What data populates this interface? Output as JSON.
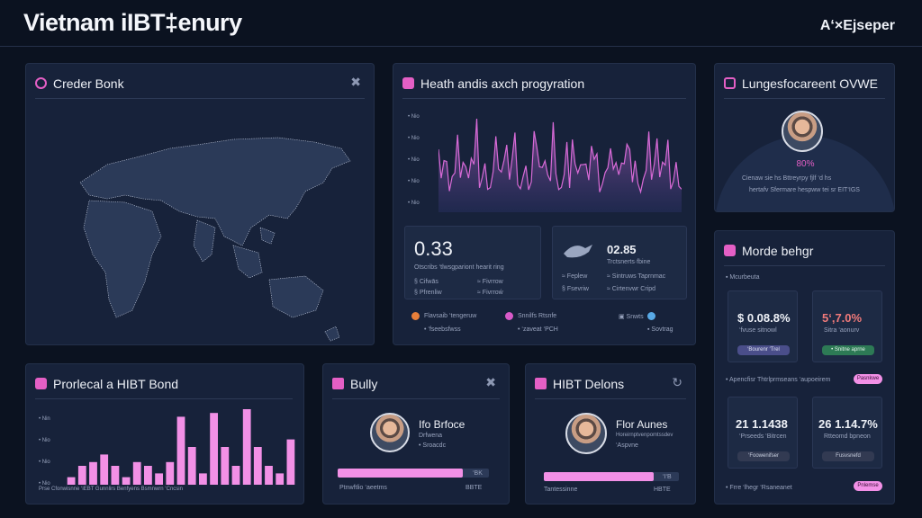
{
  "header": {
    "title": "Vietnam iIBT‡enury",
    "brand": "A‘×Ejseper"
  },
  "order_book": {
    "title": "Creder Bonk"
  },
  "health": {
    "title": "Heath andis axch progyration",
    "axis_labels": [
      "• Nio",
      "• Nio",
      "• Nio",
      "• Nio",
      "• Nio"
    ],
    "card1": {
      "value": "0.33",
      "caption": "Otscribs ‘tlwsgpariont hearit ring",
      "rows": [
        "§ Cifwās",
        "≈ Fivrrow",
        "§ Pfrenliw",
        "≈ Fivrroẃ"
      ]
    },
    "card2": {
      "value": "02.85",
      "caption": "Trctsnerts·fbine",
      "rows": [
        "≈ Feplew",
        "≈ Sintruws Taprnmac",
        "§ Fsevriw",
        "≈ Cirtenvwr Cripd"
      ]
    },
    "legend": [
      {
        "label": "Flavsaib ‘tengeruw",
        "sub": "• ‘fseebsfwss",
        "color": "#e77f3a"
      },
      {
        "label": "Snnilfs Rtsnfe",
        "sub": "• ‘zaveat ‘PCH",
        "color": "#d85ac8"
      },
      {
        "label": "▣ Snwts",
        "sub": "▪ Sovtrag",
        "color": "#58a9e6"
      }
    ]
  },
  "lunges": {
    "title": "Lungesfocareent OVWE",
    "percent": "80%",
    "line1": "Cienaw sie hs Bttreyrpy fjlf ‘d hs",
    "line2": "hertafv Sfermare hespww tei sr EIT‘IGS"
  },
  "monde": {
    "title": "Morde behgr",
    "label_top": "▪ Mcurbeuta",
    "card_a": {
      "value": "$ 0.08.8%",
      "sub": "‘fvuse sitnowl",
      "button": "‘Bourenr ‘Trel"
    },
    "card_b": {
      "value": "5‘,7.0%",
      "sub": "Sitra ‘aonurv",
      "button": "• Snitne aprne"
    },
    "row_label": "• Apencfisr Thtrlprmseans ‘aupoeirem",
    "row_pill": "Pasnkwe",
    "card_c": {
      "value": "21 1.1438",
      "sub": "‘Prseeds ‘Bitrcen",
      "button": "‘Foowenifser"
    },
    "card_d": {
      "value": "26 1.14.7%",
      "sub": "Rtteomd bpneon",
      "button": "Fusvsnefd"
    },
    "footer_label": "• Frre ‘lhegr ‘Rsaneanet",
    "footer_pill": "Pnlemse"
  },
  "provincial": {
    "title": "Prorlecal a HIBT Bond",
    "axis_labels": [
      "• Nin",
      "• Nio",
      "• Nio",
      "• Nio"
    ],
    "footer": "Prse Cfonwisnne ‘iEBT Gunnlirs Benfyens Bsmnwrn ‘Cncsin",
    "chart_data": {
      "type": "bar",
      "values": [
        2,
        5,
        6,
        8,
        5,
        2,
        6,
        5,
        3,
        6,
        18,
        10,
        3,
        19,
        10,
        5,
        20,
        10,
        5,
        3,
        12
      ]
    }
  },
  "bully": {
    "title": "Bully",
    "name": "Ifo Brfoce",
    "role": "Drfwena",
    "tag": "• Sroacdc",
    "progress_value": "‘BK",
    "progress": 0.83,
    "foot_left": "Ptnwftlio ‘aeetms",
    "foot_right": "BBTE"
  },
  "hibt": {
    "title": "HIBT Delons",
    "name": "Flor Aunes",
    "role": "Horeirnptvenpomtssdev",
    "tag": "‘Aspvne",
    "progress_value": "‘I‘B",
    "progress": 0.81,
    "foot_left": "Tantessinne",
    "foot_right": "HBTE"
  },
  "colors": {
    "accent": "#e45fc5",
    "bar": "#f290e6",
    "line": "#d86ad7",
    "green": "#4cc38a",
    "red": "#f07a7a"
  }
}
